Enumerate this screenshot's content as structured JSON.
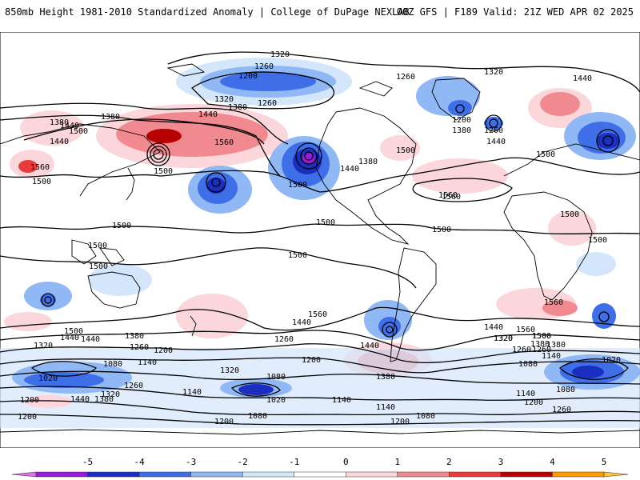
{
  "header": {
    "title_left": "850mb Height 1981-2010 Standardized Anomaly | College of DuPage NEXLAB",
    "title_right": "00Z GFS | F189 Valid: 21Z WED APR 02 2025"
  },
  "colorbar": {
    "labels": [
      "-5",
      "-4",
      "-3",
      "-2",
      "-1",
      "0",
      "1",
      "2",
      "3",
      "4",
      "5"
    ],
    "colors": [
      "#e070e8",
      "#9a1ad8",
      "#1a2fc0",
      "#3f6fe8",
      "#8fb8f4",
      "#d4e6fb",
      "#ffffff",
      "#fbd6da",
      "#f08a90",
      "#e83c3c",
      "#b80000",
      "#ff9a00",
      "#ffc640"
    ]
  },
  "contour_labels": [
    "1320",
    "1260",
    "1200",
    "1260",
    "1320",
    "1440",
    "1380",
    "1440",
    "1320",
    "1380",
    "1260",
    "1380",
    "1440",
    "1500",
    "1560",
    "1560",
    "1500",
    "1500",
    "1500",
    "1440",
    "1380",
    "1500",
    "1200",
    "1260",
    "1380",
    "1440",
    "1560",
    "1500",
    "1500",
    "1500",
    "1500",
    "1500",
    "1500",
    "1500",
    "1560",
    "1440",
    "1500",
    "1440",
    "1380",
    "1500",
    "1560",
    "1440",
    "1320",
    "1260",
    "1380",
    "1500",
    "1440",
    "1320",
    "1380",
    "1260",
    "1200",
    "1140",
    "1080",
    "1020",
    "1380",
    "1440",
    "1320",
    "1260",
    "1200",
    "1140",
    "1080",
    "1020",
    "1200",
    "1260",
    "1320",
    "1140",
    "1080",
    "1200",
    "1140",
    "1080",
    "1020",
    "1200",
    "1080",
    "1140",
    "1260",
    "1320",
    "1200",
    "1140",
    "1080",
    "1200",
    "1380",
    "1440",
    "1500",
    "1560",
    "1440",
    "1500",
    "1560",
    "1260"
  ],
  "anomaly_features": [
    {
      "sign": "negative",
      "level": "-3",
      "region": "North Pacific off British Columbia"
    },
    {
      "sign": "positive",
      "level": "3",
      "region": "Siberia / Sea of Okhotsk"
    },
    {
      "sign": "negative",
      "level": "-3",
      "region": "Central North Pacific"
    },
    {
      "sign": "negative",
      "level": "-3",
      "region": "Western Russia"
    },
    {
      "sign": "positive",
      "level": "2",
      "region": "South Pacific"
    },
    {
      "sign": "positive",
      "level": "2",
      "region": "South Atlantic off Argentina"
    },
    {
      "sign": "negative",
      "level": "-3",
      "region": "Southern Indian Ocean"
    },
    {
      "sign": "negative",
      "level": "-3",
      "region": "Southern Ocean south of Australia"
    }
  ]
}
